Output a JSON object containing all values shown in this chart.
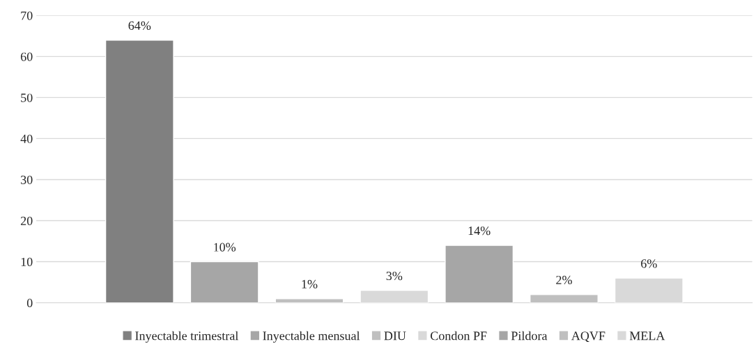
{
  "chart_data": {
    "type": "bar",
    "categories": [
      null
    ],
    "series": [
      {
        "name": "Inyectable trimestral",
        "color": "#808080",
        "values": [
          64
        ],
        "value_labels": [
          "64%"
        ]
      },
      {
        "name": "Inyectable mensual",
        "color": "#a6a6a6",
        "values": [
          10
        ],
        "value_labels": [
          "10%"
        ]
      },
      {
        "name": "DIU",
        "color": "#bfbfbf",
        "values": [
          1
        ],
        "value_labels": [
          "1%"
        ]
      },
      {
        "name": "Condon PF",
        "color": "#d9d9d9",
        "values": [
          3
        ],
        "value_labels": [
          "3%"
        ]
      },
      {
        "name": "Pildora",
        "color": "#a6a6a6",
        "values": [
          14
        ],
        "value_labels": [
          "14%"
        ]
      },
      {
        "name": "AQVF",
        "color": "#bfbfbf",
        "values": [
          2
        ],
        "value_labels": [
          "2%"
        ]
      },
      {
        "name": "MELA",
        "color": "#d9d9d9",
        "values": [
          6
        ],
        "value_labels": [
          "6%"
        ]
      }
    ],
    "ylim": [
      0,
      70
    ],
    "yticks": [
      0,
      10,
      20,
      30,
      40,
      50,
      60,
      70
    ],
    "grid": "y",
    "legend": "bottom"
  }
}
